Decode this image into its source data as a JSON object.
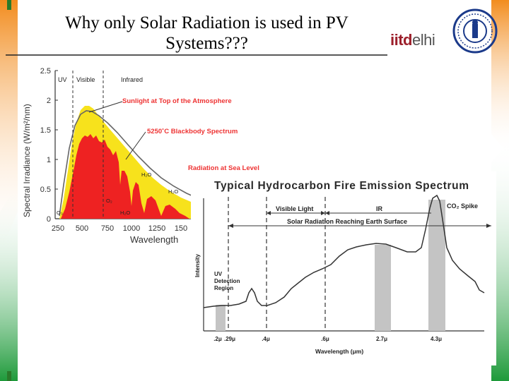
{
  "slide": {
    "title_line1": "Why only Solar Radiation is used in PV",
    "title_line2": "Systems???"
  },
  "logo": {
    "word_a": "iitd",
    "word_b": "elhi",
    "icon": "iit-delhi-seal-icon"
  },
  "colors": {
    "orange": "#f39a2e",
    "green": "#1f9a3a",
    "solar_yellow": "#f7e21c",
    "solar_red": "#ee2222",
    "band_gray": "#bdbdbd"
  },
  "solar_chart": {
    "type": "area",
    "y_axis_label": "Spectral Irradiance (W/m²/nm)",
    "x_axis_label": "Wavelength",
    "y_ticks": [
      "2.5",
      "2",
      "1.5",
      "1",
      "0.5",
      "0"
    ],
    "x_ticks": [
      "250",
      "500",
      "750",
      "1000",
      "1250",
      "150"
    ],
    "region_labels": {
      "uv": "UV",
      "visible": "Visible",
      "infrared": "Infrared"
    },
    "annotations": {
      "top_of_atmosphere": "Sunlight at Top of the Atmosphere",
      "blackbody": "5250˚C Blackbody Spectrum",
      "sea_level": "Radiation at Sea Level"
    },
    "absorption_labels": [
      "H₂O",
      "H₂O",
      "O₂",
      "H₂O",
      "O₃"
    ]
  },
  "fire_chart": {
    "type": "line",
    "title": "Typical Hydrocarbon Fire Emission Spectrum",
    "y_axis_label": "Intensity",
    "x_axis_label": "Wavelength (μm)",
    "x_ticks": [
      ".2μ",
      ".29μ",
      ".4μ",
      ".6μ",
      "2.7μ",
      "4.3μ"
    ],
    "labels": {
      "visible_light": "Visible Light",
      "ir": "IR",
      "co2_spike": "CO₂ Spike",
      "solar_reach": "Solar Radiation Reaching Earth Surface",
      "uv_region_1": "UV",
      "uv_region_2": "Detection",
      "uv_region_3": "Region"
    }
  }
}
